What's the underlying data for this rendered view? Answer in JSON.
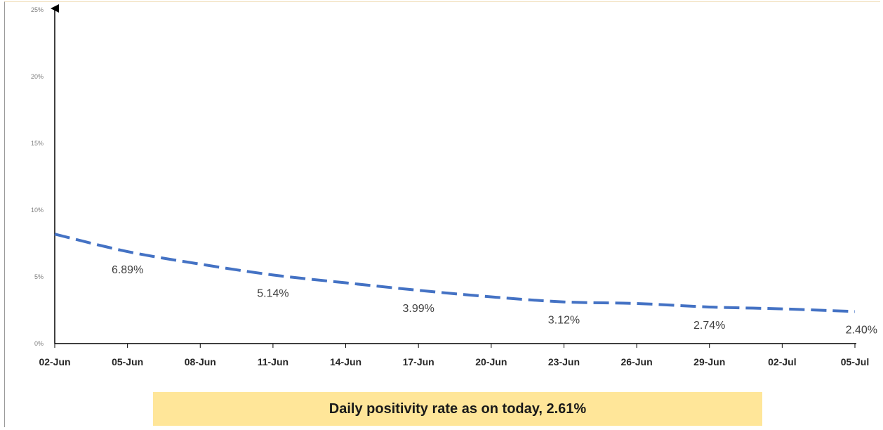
{
  "chart_data": {
    "type": "line",
    "x": [
      "02-Jun",
      "05-Jun",
      "08-Jun",
      "11-Jun",
      "14-Jun",
      "17-Jun",
      "20-Jun",
      "23-Jun",
      "26-Jun",
      "29-Jun",
      "02-Jul",
      "05-Jul"
    ],
    "series": [
      {
        "values": [
          8.2,
          6.89,
          5.95,
          5.14,
          4.55,
          3.99,
          3.5,
          3.12,
          3.0,
          2.74,
          2.6,
          2.4
        ]
      }
    ],
    "data_labels": [
      {
        "index": 1,
        "text": "6.89%"
      },
      {
        "index": 3,
        "text": "5.14%"
      },
      {
        "index": 5,
        "text": "3.99%"
      },
      {
        "index": 7,
        "text": "3.12%"
      },
      {
        "index": 9,
        "text": "2.74%"
      },
      {
        "index": 11,
        "text": "2.40%"
      }
    ],
    "yticks": [
      "0%",
      "5%",
      "10%",
      "15%",
      "20%",
      "25%"
    ],
    "ylim": [
      0,
      25
    ],
    "line_color": "#4472c4",
    "line_style": "dashed",
    "grid": false
  },
  "banner": {
    "text": "Daily positivity rate as on today, 2.61%",
    "color": "#ffe699"
  }
}
